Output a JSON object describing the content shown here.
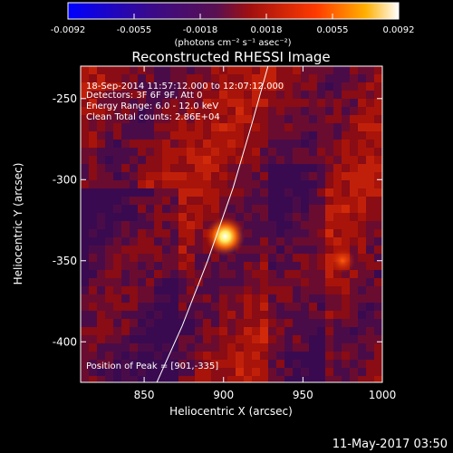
{
  "chart_data": {
    "type": "heatmap",
    "title": "Reconstructed RHESSI Image",
    "xlabel": "Heliocentric X (arcsec)",
    "ylabel": "Heliocentric Y (arcsec)",
    "xlim": [
      810,
      1000
    ],
    "ylim": [
      -425,
      -230
    ],
    "x_ticks": [
      850,
      900,
      950,
      1000
    ],
    "y_ticks": [
      -400,
      -350,
      -300,
      -250
    ],
    "colorbar": {
      "ticks": [
        "-0.0092",
        "-0.0055",
        "-0.0018",
        "0.0018",
        "0.0055",
        "0.0092"
      ],
      "min": -0.0092,
      "max": 0.0092,
      "unit_label": "(photons cm⁻² s⁻¹ asec⁻²)"
    },
    "annotations": [
      "18-Sep-2014 11:57:12.000 to 12:07:12.000",
      "Detectors: 3F 6F 9F, Att 0",
      "Energy Range: 6.0 - 12.0 keV",
      "Clean    Total counts: 2.86E+04"
    ],
    "peak": {
      "label": "Position of Peak = [901,-335]",
      "x": 901,
      "y": -335
    },
    "sources": [
      {
        "x": 901,
        "y": -335,
        "value": 0.0092
      },
      {
        "x": 975,
        "y": -350,
        "value": 0.005
      }
    ],
    "limb": [
      [
        858,
        -425
      ],
      [
        874,
        -390
      ],
      [
        890,
        -350
      ],
      [
        906,
        -305
      ],
      [
        918,
        -265
      ],
      [
        928,
        -230
      ]
    ],
    "grid": false
  },
  "footer": {
    "timestamp": "11-May-2017 03:50"
  }
}
